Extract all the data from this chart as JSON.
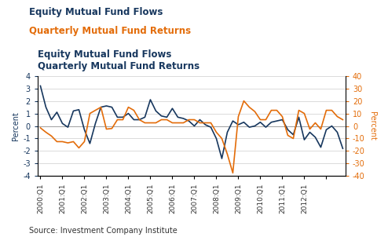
{
  "title_blue": "Equity Mutual Fund Flows",
  "title_orange": "Quarterly Mutual Fund Returns",
  "source": "Source: Investment Company Institute",
  "ylabel_left": "Percent",
  "ylabel_right": "Percent",
  "ylim_left": [
    -4,
    4
  ],
  "ylim_right": [
    -40,
    40
  ],
  "yticks_left": [
    -4,
    -3,
    -2,
    -1,
    0,
    1,
    2,
    3,
    4
  ],
  "yticks_right": [
    -40,
    -30,
    -20,
    -10,
    0,
    10,
    20,
    30,
    40
  ],
  "color_blue": "#17375E",
  "color_orange": "#E36C09",
  "xtick_labels": [
    "2000:Q1",
    "2001:Q1",
    "2002:Q1",
    "2003:Q1",
    "2004:Q1",
    "2005:Q1",
    "2006:Q1",
    "2007:Q1",
    "2008:Q1",
    "2009:Q1",
    "2010:Q1",
    "2011:Q1",
    "2012:Q1"
  ],
  "blue_data": [
    3.2,
    1.5,
    0.5,
    1.1,
    0.2,
    -0.1,
    1.2,
    1.3,
    -0.3,
    -1.4,
    0.2,
    1.5,
    1.6,
    1.5,
    0.7,
    0.7,
    1.0,
    0.5,
    0.5,
    0.7,
    2.1,
    1.2,
    0.8,
    0.7,
    1.4,
    0.7,
    0.6,
    0.4,
    0.0,
    0.5,
    0.1,
    -0.1,
    -1.0,
    -2.6,
    -0.5,
    0.4,
    0.1,
    0.3,
    -0.1,
    0.0,
    0.3,
    -0.1,
    0.3,
    0.4,
    0.5,
    -0.3,
    -0.7,
    0.7,
    -1.1,
    -0.5,
    -0.9,
    -1.7,
    -0.3,
    0.0,
    -0.5,
    -1.8
  ],
  "orange_data": [
    -1.5,
    -5.0,
    -8.0,
    -12.5,
    -12.5,
    -13.5,
    -12.5,
    -17.5,
    -12.5,
    10.0,
    12.5,
    15.0,
    -2.5,
    -2.0,
    5.0,
    5.0,
    15.0,
    12.5,
    5.0,
    2.5,
    2.5,
    2.5,
    5.0,
    5.0,
    2.5,
    2.5,
    2.5,
    5.0,
    5.0,
    2.5,
    2.5,
    2.5,
    -5.0,
    -10.0,
    -22.5,
    -37.5,
    7.5,
    20.0,
    15.0,
    11.5,
    5.0,
    5.0,
    12.5,
    12.5,
    7.5,
    -7.5,
    -10.0,
    12.5,
    10.0,
    -2.5,
    2.5,
    -2.5,
    12.5,
    12.5,
    7.5,
    5.0
  ]
}
